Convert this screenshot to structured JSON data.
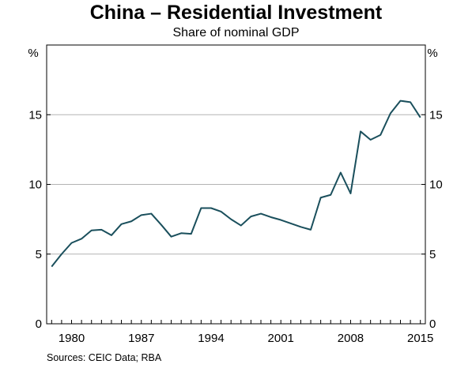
{
  "chart_data": {
    "type": "line",
    "title": "China – Residential Investment",
    "subtitle": "Share of nominal GDP",
    "ylabel_left": "%",
    "ylabel_right": "%",
    "source": "Sources:   CEIC Data; RBA",
    "xlim": [
      1977.5,
      2015.5
    ],
    "ylim": [
      0,
      20
    ],
    "y_ticks": [
      0,
      5,
      10,
      15
    ],
    "x_ticks": [
      1980,
      1987,
      1994,
      2001,
      2008,
      2015
    ],
    "grid": true,
    "line_color": "#1a4f5c",
    "series": [
      {
        "x": [
          1978,
          1979,
          1980,
          1981,
          1982,
          1983,
          1984,
          1985,
          1986,
          1987,
          1988,
          1989,
          1990,
          1991,
          1992,
          1993,
          1994,
          1995,
          1996,
          1997,
          1998,
          1999,
          2000,
          2001,
          2002,
          2003,
          2004,
          2005,
          2006,
          2007,
          2008,
          2009,
          2010,
          2011,
          2012,
          2013,
          2014,
          2015
        ],
        "values": [
          4.1,
          5.0,
          5.8,
          6.1,
          6.7,
          6.75,
          6.35,
          7.15,
          7.35,
          7.8,
          7.9,
          7.1,
          6.25,
          6.5,
          6.45,
          8.3,
          8.3,
          8.05,
          7.5,
          7.05,
          7.7,
          7.9,
          7.65,
          7.45,
          7.2,
          6.95,
          6.75,
          9.05,
          9.25,
          10.85,
          9.35,
          13.8,
          13.2,
          13.55,
          15.1,
          16.0,
          15.9,
          14.8
        ]
      }
    ]
  }
}
